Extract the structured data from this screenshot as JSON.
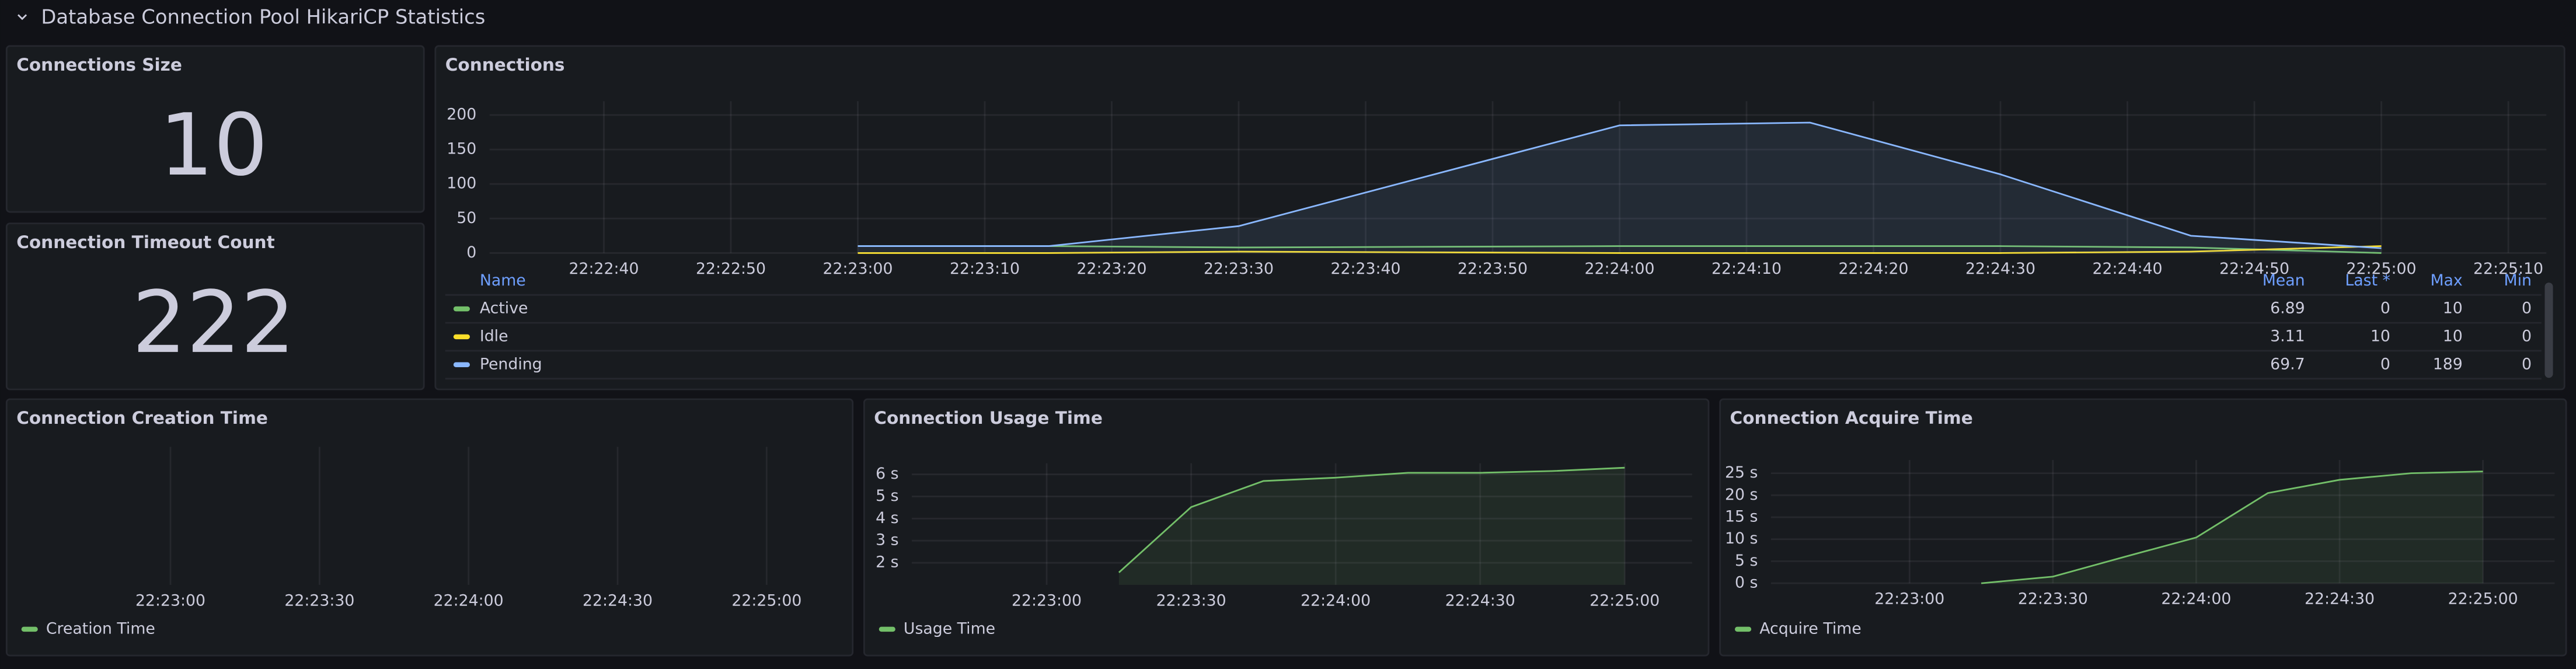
{
  "row_title": "Database Connection Pool HikariCP Statistics",
  "stats": [
    {
      "title": "Connections Size",
      "value": 10
    },
    {
      "title": "Connection Timeout Count",
      "value": 222
    }
  ],
  "chart_data": [
    {
      "type": "line",
      "title": "Connections",
      "x": [
        "22:23:00",
        "22:23:15",
        "22:23:30",
        "22:24:00",
        "22:24:15",
        "22:24:30",
        "22:24:45",
        "22:25:00"
      ],
      "xlim": [
        "22:22:31",
        "22:25:13"
      ],
      "xticks": [
        "22:22:40",
        "22:22:50",
        "22:23:00",
        "22:23:10",
        "22:23:20",
        "22:23:30",
        "22:23:40",
        "22:23:50",
        "22:24:00",
        "22:24:10",
        "22:24:20",
        "22:24:30",
        "22:24:40",
        "22:24:50",
        "22:25:00",
        "22:25:10"
      ],
      "ylim": [
        0,
        220
      ],
      "yticks": [
        0,
        50,
        100,
        150,
        200
      ],
      "grid": true,
      "legend_columns": [
        "Name",
        "Mean",
        "Last *",
        "Max",
        "Min"
      ],
      "series": [
        {
          "name": "Active",
          "color": "#73bf69",
          "values": [
            10,
            10,
            8,
            10,
            10,
            10,
            8,
            0
          ],
          "mean": 6.89,
          "last": 0,
          "max": 10,
          "min": 0,
          "fill": false
        },
        {
          "name": "Idle",
          "color": "#fade2a",
          "values": [
            0,
            0,
            2,
            0,
            0,
            0,
            2,
            10
          ],
          "mean": 3.11,
          "last": 10,
          "max": 10,
          "min": 0,
          "fill": false
        },
        {
          "name": "Pending",
          "color": "#8ab8ff",
          "values": [
            10,
            10,
            39,
            185,
            189,
            114,
            25,
            7
          ],
          "mean": 69.7,
          "last": 0,
          "max": 189,
          "min": 0,
          "fill": true
        }
      ]
    },
    {
      "type": "line",
      "title": "Connection Creation Time",
      "x": [],
      "xlim": [
        "22:22:29",
        "22:25:15"
      ],
      "xticks": [
        "22:23:00",
        "22:23:30",
        "22:24:00",
        "22:24:30",
        "22:25:00"
      ],
      "grid": true,
      "series": [
        {
          "name": "Creation Time",
          "color": "#73bf69",
          "values": [],
          "fill": true
        }
      ]
    },
    {
      "type": "line",
      "title": "Connection Usage Time",
      "x": [
        "22:23:15",
        "22:23:30",
        "22:23:45",
        "22:24:00",
        "22:24:15",
        "22:24:30",
        "22:24:45",
        "22:25:00"
      ],
      "xlim": [
        "22:22:32",
        "22:25:14"
      ],
      "xticks": [
        "22:23:00",
        "22:23:30",
        "22:24:00",
        "22:24:30",
        "22:25:00"
      ],
      "ylim": [
        1,
        6.5
      ],
      "yticks": [
        {
          "value": 2,
          "label": "2 s"
        },
        {
          "value": 3,
          "label": "3 s"
        },
        {
          "value": 4,
          "label": "4 s"
        },
        {
          "value": 5,
          "label": "5 s"
        },
        {
          "value": 6,
          "label": "6 s"
        }
      ],
      "grid": true,
      "series": [
        {
          "name": "Usage Time",
          "color": "#73bf69",
          "values": [
            1.56,
            4.52,
            5.7,
            5.85,
            6.07,
            6.07,
            6.15,
            6.3
          ],
          "fill": true
        }
      ]
    },
    {
      "type": "line",
      "title": "Connection Acquire Time",
      "x": [
        "22:23:15",
        "22:23:30",
        "22:23:45",
        "22:24:00",
        "22:24:15",
        "22:24:30",
        "22:24:45",
        "22:25:00"
      ],
      "xlim": [
        "22:22:31",
        "22:25:15"
      ],
      "xticks": [
        "22:23:00",
        "22:23:30",
        "22:24:00",
        "22:24:30",
        "22:25:00"
      ],
      "ylim": [
        0,
        28
      ],
      "yticks": [
        {
          "value": 0,
          "label": "0 s"
        },
        {
          "value": 5,
          "label": "5 s"
        },
        {
          "value": 10,
          "label": "10 s"
        },
        {
          "value": 15,
          "label": "15 s"
        },
        {
          "value": 20,
          "label": "20 s"
        },
        {
          "value": 25,
          "label": "25 s"
        }
      ],
      "grid": true,
      "series": [
        {
          "name": "Acquire Time",
          "color": "#73bf69",
          "values": [
            0,
            1.5,
            6,
            10.4,
            20.5,
            23.5,
            25,
            25.4
          ],
          "fill": true
        }
      ]
    }
  ]
}
